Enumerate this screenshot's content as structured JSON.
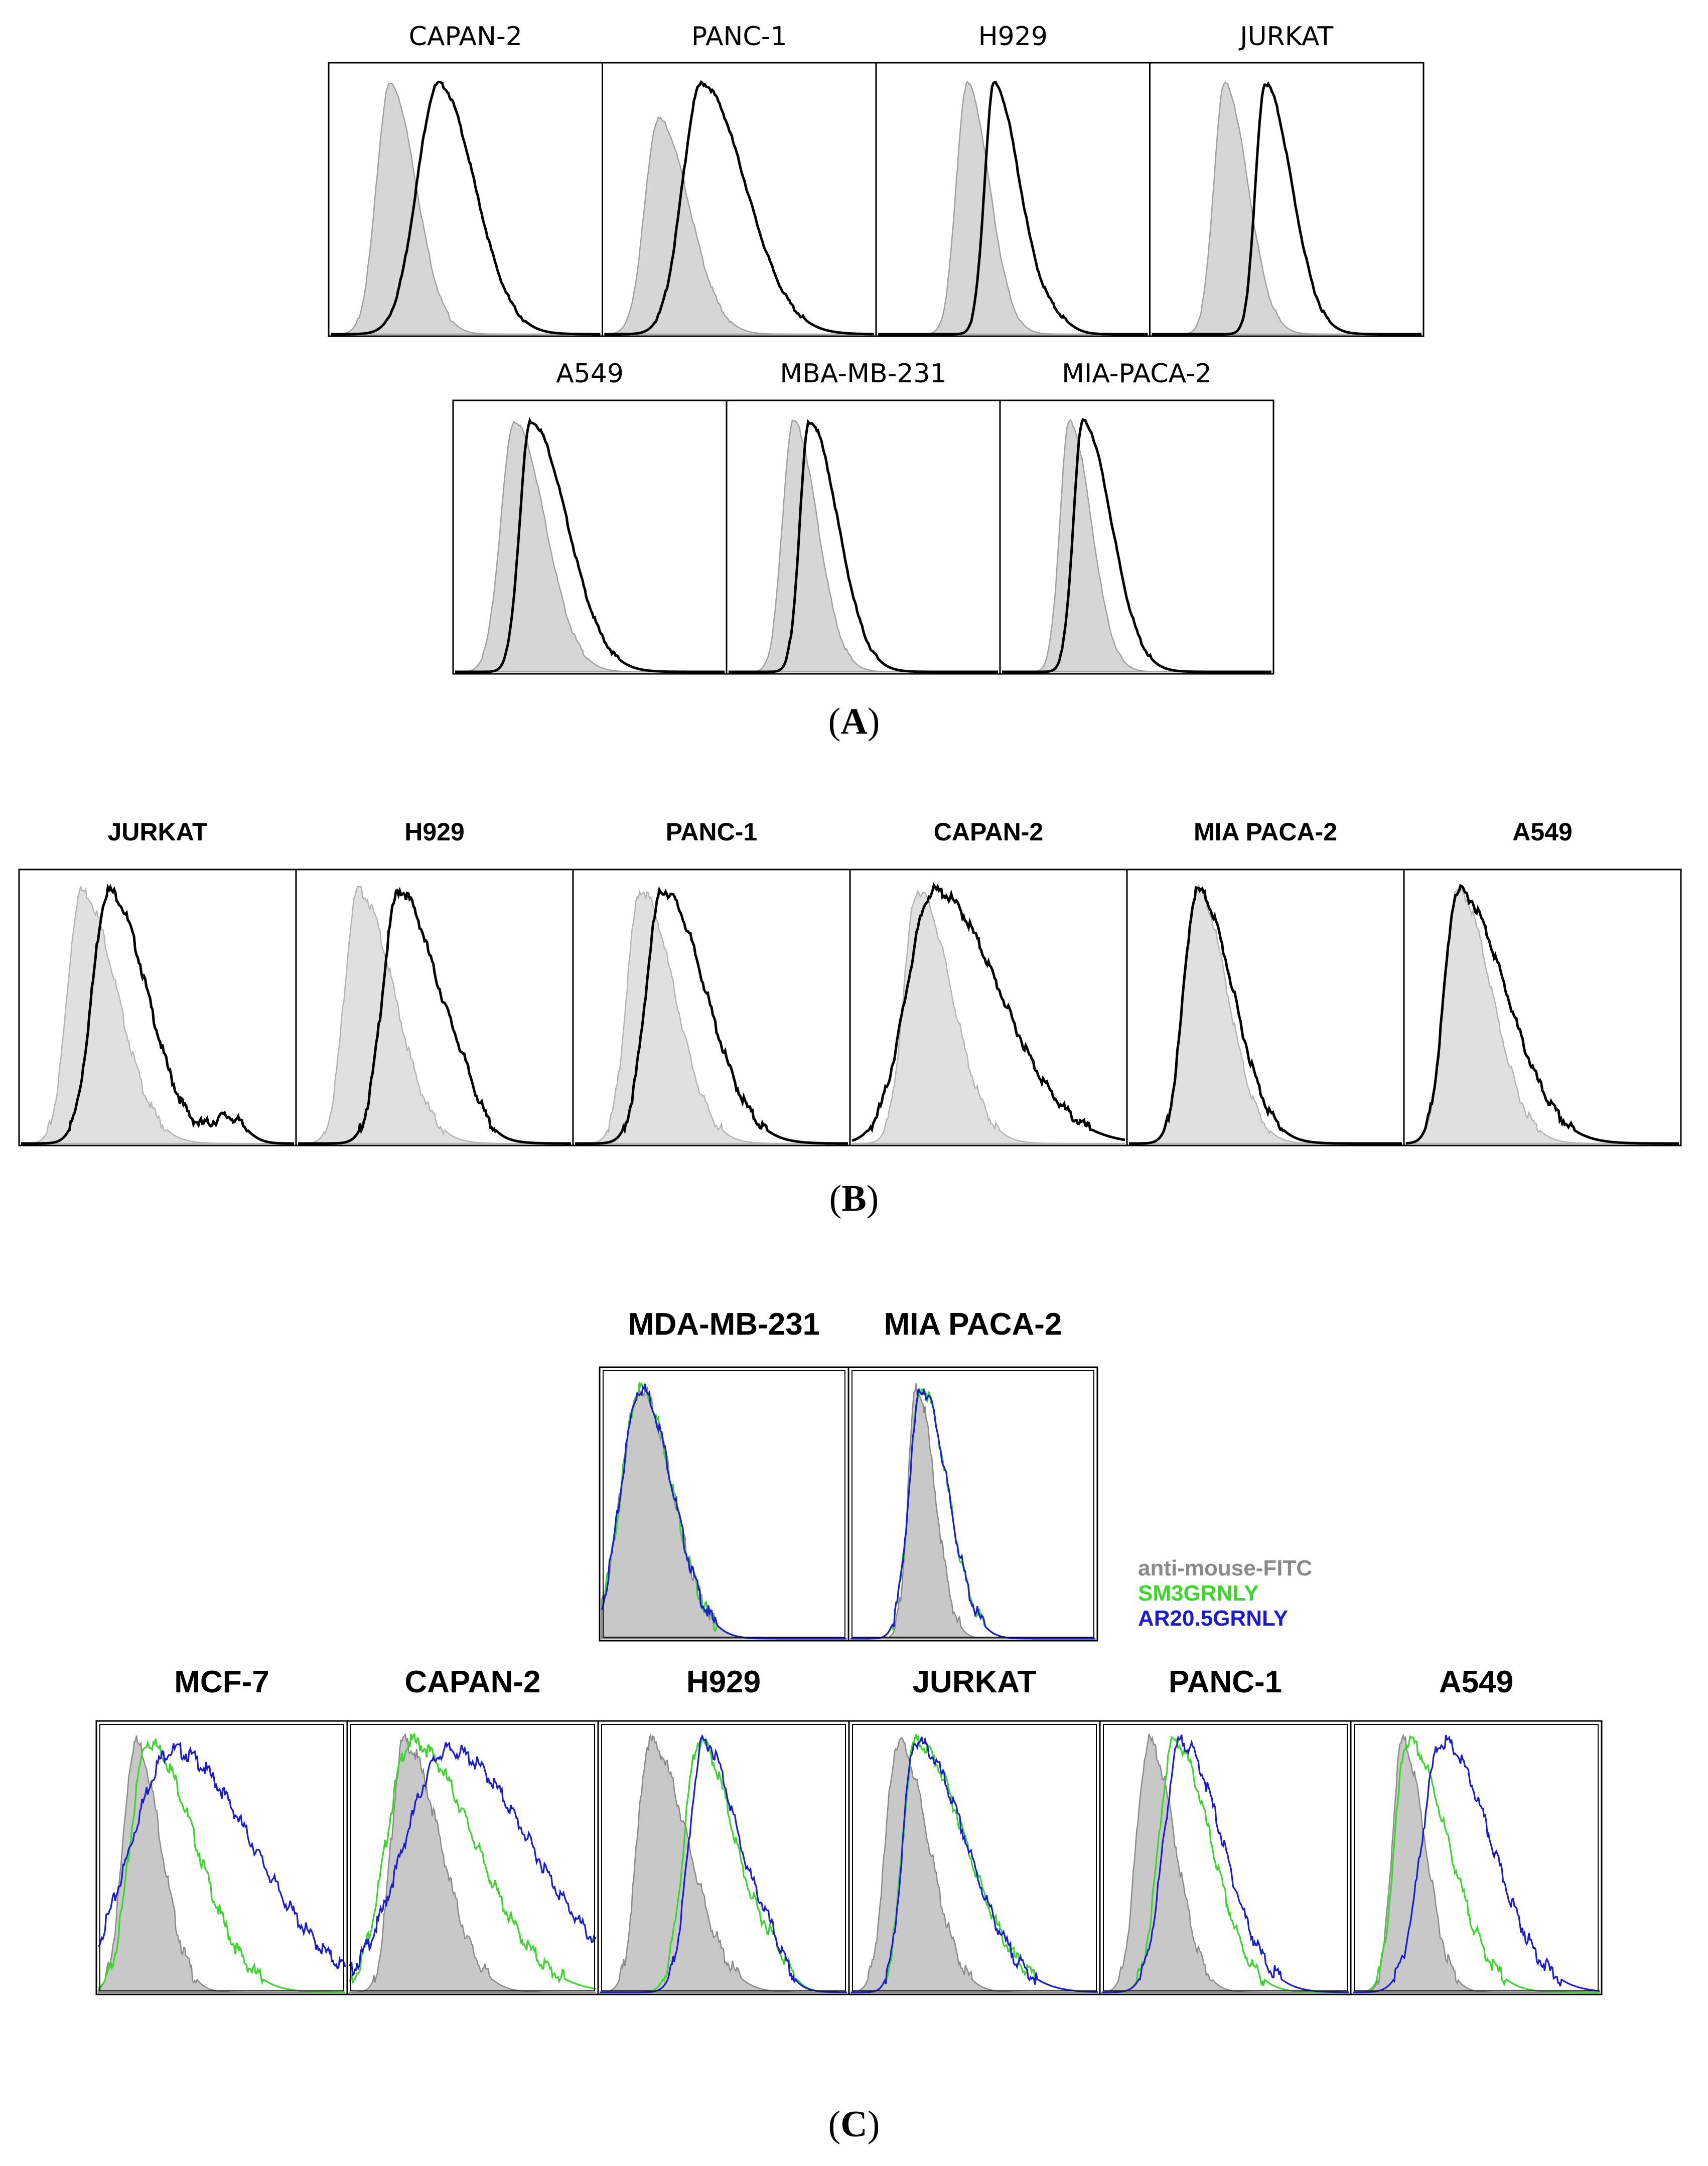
{
  "figure": {
    "panels": [
      {
        "id": "A",
        "caption_letter": "A"
      },
      {
        "id": "B",
        "caption_letter": "B"
      },
      {
        "id": "C",
        "caption_letter": "C"
      }
    ],
    "legend_c": [
      {
        "label": "anti-mouse-FITC",
        "color": "#8a8a8a"
      },
      {
        "label": "SM3GRNLY",
        "color": "#3ad62a"
      },
      {
        "label": "AR20.5GRNLY",
        "color": "#1a1ad6"
      }
    ]
  },
  "chart_data": [
    {
      "type": "area",
      "panel": "A",
      "row": 1,
      "titles": [
        "CAPAN-2",
        "PANC-1",
        "H929",
        "JURKAT"
      ],
      "series": [
        {
          "role": "control",
          "fill": "#d6d6d6",
          "stroke": "#a0a0a0"
        },
        {
          "role": "stained",
          "stroke": "#000000"
        }
      ],
      "histograms": [
        {
          "control": {
            "peak": 0.22,
            "width": 0.05,
            "height": 0.93,
            "tail": 0.35
          },
          "stained": {
            "peak": 0.4,
            "width": 0.08,
            "height": 0.93,
            "tail": 0.55
          }
        },
        {
          "control": {
            "peak": 0.2,
            "width": 0.05,
            "height": 0.8,
            "tail": 0.38
          },
          "stained": {
            "peak": 0.36,
            "width": 0.07,
            "height": 0.93,
            "tail": 0.62
          }
        },
        {
          "control": {
            "peak": 0.33,
            "width": 0.04,
            "height": 0.93,
            "tail": 0.45
          },
          "stained": {
            "peak": 0.43,
            "width": 0.035,
            "height": 0.93,
            "tail": 0.6,
            "bump": {
              "at": 0.65,
              "h": 0.05
            }
          }
        },
        {
          "control": {
            "peak": 0.27,
            "width": 0.04,
            "height": 0.93,
            "tail": 0.4
          },
          "stained": {
            "peak": 0.42,
            "width": 0.035,
            "height": 0.93,
            "tail": 0.6
          }
        }
      ]
    },
    {
      "type": "area",
      "panel": "A",
      "row": 2,
      "titles": [
        "A549",
        "MBA-MB-231",
        "MIA-PACA-2"
      ],
      "series": [
        {
          "role": "control",
          "fill": "#d6d6d6",
          "stroke": "#a0a0a0"
        },
        {
          "role": "stained",
          "stroke": "#000000"
        }
      ],
      "histograms": [
        {
          "control": {
            "peak": 0.22,
            "width": 0.05,
            "height": 0.93,
            "tail": 0.4
          },
          "stained": {
            "peak": 0.28,
            "width": 0.04,
            "height": 0.93,
            "tail": 0.55
          }
        },
        {
          "control": {
            "peak": 0.24,
            "width": 0.04,
            "height": 0.93,
            "tail": 0.38
          },
          "stained": {
            "peak": 0.3,
            "width": 0.035,
            "height": 0.93,
            "tail": 0.5
          }
        },
        {
          "control": {
            "peak": 0.25,
            "width": 0.035,
            "height": 0.93,
            "tail": 0.38
          },
          "stained": {
            "peak": 0.3,
            "width": 0.035,
            "height": 0.93,
            "tail": 0.5
          }
        }
      ]
    },
    {
      "type": "area",
      "panel": "B",
      "row": 1,
      "titles": [
        "JURKAT",
        "H929",
        "PANC-1",
        "CAPAN-2",
        "MIA PACA-2",
        "A549"
      ],
      "series": [
        {
          "role": "control",
          "fill": "#e0e0e0",
          "stroke": "#b4b4b4"
        },
        {
          "role": "stained",
          "stroke": "#000000"
        }
      ],
      "histograms": [
        {
          "control": {
            "peak": 0.22,
            "width": 0.05,
            "height": 0.93,
            "tail": 0.45
          },
          "stained": {
            "peak": 0.32,
            "width": 0.06,
            "height": 0.93,
            "tail": 0.55,
            "bump": {
              "at": 0.76,
              "h": 0.1
            }
          }
        },
        {
          "control": {
            "peak": 0.22,
            "width": 0.05,
            "height": 0.93,
            "tail": 0.45
          },
          "stained": {
            "peak": 0.37,
            "width": 0.06,
            "height": 0.93,
            "tail": 0.6,
            "bump": {
              "at": 0.6,
              "h": 0.1
            }
          }
        },
        {
          "control": {
            "peak": 0.24,
            "width": 0.05,
            "height": 0.93,
            "tail": 0.45
          },
          "stained": {
            "peak": 0.32,
            "width": 0.06,
            "height": 0.93,
            "tail": 0.6
          }
        },
        {
          "control": {
            "peak": 0.24,
            "width": 0.05,
            "height": 0.93,
            "tail": 0.45
          },
          "stained": {
            "peak": 0.3,
            "width": 0.1,
            "height": 0.93,
            "tail": 0.7
          }
        },
        {
          "control": {
            "peak": 0.25,
            "width": 0.05,
            "height": 0.93,
            "tail": 0.42
          },
          "stained": {
            "peak": 0.25,
            "width": 0.05,
            "height": 0.93,
            "tail": 0.48
          }
        },
        {
          "control": {
            "peak": 0.19,
            "width": 0.05,
            "height": 0.93,
            "tail": 0.4
          },
          "stained": {
            "peak": 0.19,
            "width": 0.05,
            "height": 0.93,
            "tail": 0.55
          }
        }
      ]
    },
    {
      "type": "area",
      "panel": "C",
      "row": 1,
      "titles": [
        "MDA-MB-231",
        "MIA PACA-2"
      ],
      "series": [
        {
          "role": "anti-mouse-FITC",
          "fill": "#c8c8c8",
          "stroke": "#8a8a8a"
        },
        {
          "role": "SM3GRNLY",
          "stroke": "#3ad62a"
        },
        {
          "role": "AR20.5GRNLY",
          "stroke": "#1a1ad6"
        }
      ],
      "histograms": [
        {
          "control": {
            "peak": 0.16,
            "width": 0.08,
            "height": 0.93,
            "tail": 0.3
          },
          "green": {
            "peak": 0.16,
            "width": 0.08,
            "height": 0.93,
            "tail": 0.3
          },
          "blue": {
            "peak": 0.16,
            "width": 0.08,
            "height": 0.93,
            "tail": 0.3
          }
        },
        {
          "control": {
            "peak": 0.27,
            "width": 0.035,
            "height": 0.93,
            "tail": 0.38
          },
          "green": {
            "peak": 0.29,
            "width": 0.05,
            "height": 0.93,
            "tail": 0.45
          },
          "blue": {
            "peak": 0.29,
            "width": 0.05,
            "height": 0.93,
            "tail": 0.45
          }
        }
      ]
    },
    {
      "type": "area",
      "panel": "C",
      "row": 2,
      "titles": [
        "MCF-7",
        "CAPAN-2",
        "H929",
        "JURKAT",
        "PANC-1",
        "A549"
      ],
      "series": [
        {
          "role": "anti-mouse-FITC",
          "fill": "#c8c8c8",
          "stroke": "#8a8a8a"
        },
        {
          "role": "SM3GRNLY",
          "stroke": "#3ad62a"
        },
        {
          "role": "AR20.5GRNLY",
          "stroke": "#1a1ad6"
        }
      ],
      "histograms": [
        {
          "control": {
            "peak": 0.15,
            "width": 0.05,
            "height": 0.93,
            "tail": 0.3
          },
          "green": {
            "peak": 0.2,
            "width": 0.07,
            "height": 0.93,
            "tail": 0.55
          },
          "blue": {
            "peak": 0.3,
            "width": 0.17,
            "height": 0.9,
            "tail": 0.75
          }
        },
        {
          "control": {
            "peak": 0.22,
            "width": 0.05,
            "height": 0.93,
            "tail": 0.5
          },
          "green": {
            "peak": 0.25,
            "width": 0.1,
            "height": 0.93,
            "tail": 0.7
          },
          "blue": {
            "peak": 0.4,
            "width": 0.18,
            "height": 0.9,
            "tail": 0.85
          }
        },
        {
          "control": {
            "peak": 0.2,
            "width": 0.05,
            "height": 0.93,
            "tail": 0.5
          },
          "green": {
            "peak": 0.4,
            "width": 0.06,
            "height": 0.93,
            "tail": 0.65,
            "bump": {
              "at": 0.7,
              "h": 0.1
            }
          },
          "blue": {
            "peak": 0.42,
            "width": 0.06,
            "height": 0.93,
            "tail": 0.65,
            "bump": {
              "at": 0.68,
              "h": 0.12
            }
          }
        },
        {
          "control": {
            "peak": 0.19,
            "width": 0.05,
            "height": 0.93,
            "tail": 0.4
          },
          "green": {
            "peak": 0.26,
            "width": 0.05,
            "height": 0.93,
            "tail": 0.7
          },
          "blue": {
            "peak": 0.26,
            "width": 0.05,
            "height": 0.93,
            "tail": 0.7
          }
        },
        {
          "control": {
            "peak": 0.19,
            "width": 0.05,
            "height": 0.93,
            "tail": 0.35
          },
          "green": {
            "peak": 0.29,
            "width": 0.06,
            "height": 0.93,
            "tail": 0.55
          },
          "blue": {
            "peak": 0.32,
            "width": 0.07,
            "height": 0.93,
            "tail": 0.6
          }
        },
        {
          "control": {
            "peak": 0.2,
            "width": 0.04,
            "height": 0.93,
            "tail": 0.35
          },
          "green": {
            "peak": 0.22,
            "width": 0.05,
            "height": 0.93,
            "tail": 0.55
          },
          "blue": {
            "peak": 0.36,
            "width": 0.08,
            "height": 0.93,
            "tail": 0.7
          }
        }
      ]
    }
  ]
}
